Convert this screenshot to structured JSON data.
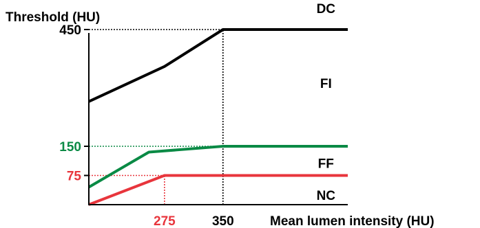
{
  "chart_data": {
    "type": "line",
    "ylabel": "Threshold (HU)",
    "xlabel": "Mean lumen intensity (HU)",
    "xlim": [
      178,
      510
    ],
    "ylim": [
      0,
      480
    ],
    "x_ticks": [
      {
        "value": 275,
        "label": "275",
        "color": "#e8353c"
      },
      {
        "value": 350,
        "label": "350",
        "color": "#000000"
      }
    ],
    "y_ticks": [
      {
        "value": 450,
        "label": "450",
        "color": "#000000"
      },
      {
        "value": 150,
        "label": "150",
        "color": "#0a8a45"
      },
      {
        "value": 75,
        "label": "75",
        "color": "#e8353c"
      }
    ],
    "series": [
      {
        "key": "black",
        "color": "#000000",
        "points": [
          [
            178,
            265
          ],
          [
            275,
            355
          ],
          [
            350,
            450
          ],
          [
            510,
            450
          ]
        ]
      },
      {
        "key": "green",
        "color": "#0a8a45",
        "points": [
          [
            178,
            45
          ],
          [
            255,
            135
          ],
          [
            350,
            150
          ],
          [
            510,
            150
          ]
        ]
      },
      {
        "key": "red",
        "color": "#e8353c",
        "points": [
          [
            178,
            0
          ],
          [
            275,
            75
          ],
          [
            350,
            75
          ],
          [
            510,
            75
          ]
        ]
      }
    ],
    "guides": [
      {
        "key": "y450",
        "from": [
          178,
          450
        ],
        "to": [
          350,
          450
        ],
        "color": "#000000"
      },
      {
        "key": "x350",
        "from": [
          350,
          0
        ],
        "to": [
          350,
          450
        ],
        "color": "#000000"
      },
      {
        "key": "y150",
        "from": [
          178,
          150
        ],
        "to": [
          350,
          150
        ],
        "color": "#0a8a45"
      },
      {
        "key": "y75",
        "from": [
          178,
          75
        ],
        "to": [
          275,
          75
        ],
        "color": "#e8353c"
      },
      {
        "key": "x275",
        "from": [
          275,
          0
        ],
        "to": [
          275,
          75
        ],
        "color": "#e8353c"
      }
    ],
    "region_labels": [
      {
        "key": "dc",
        "text": "DC",
        "x": 482,
        "y": 505
      },
      {
        "key": "fi",
        "text": "FI",
        "x": 482,
        "y": 312
      },
      {
        "key": "ff",
        "text": "FF",
        "x": 482,
        "y": 107
      },
      {
        "key": "nc",
        "text": "NC",
        "x": 482,
        "y": 25
      }
    ]
  }
}
